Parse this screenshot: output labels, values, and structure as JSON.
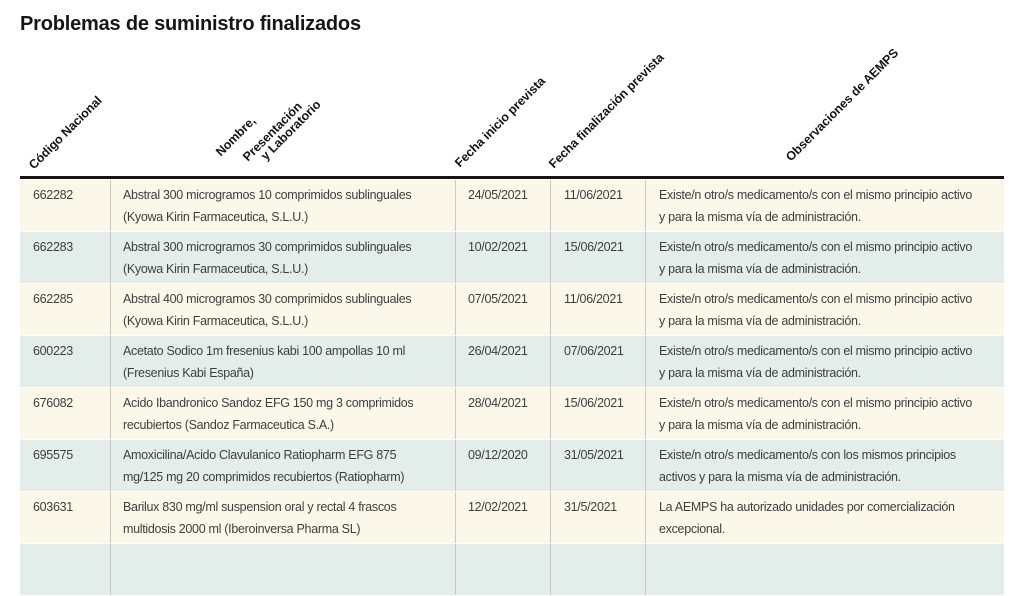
{
  "page": {
    "title": "Problemas de suministro finalizados"
  },
  "colors": {
    "row_odd": "#fbf8e9",
    "row_even": "#e3ede9",
    "divider": "#c8c8c8",
    "border_dark": "#141414"
  },
  "table": {
    "columns": [
      {
        "label": "Código Nacional"
      },
      {
        "label_lines": [
          "Nombre,",
          "Presentación",
          "y Laboratorio"
        ]
      },
      {
        "label": "Fecha inicio prevista"
      },
      {
        "label": "Fecha finalización prevista"
      },
      {
        "label": "Observaciones de AEMPS"
      }
    ],
    "rows": [
      {
        "codigo": "662282",
        "nombre": "Abstral 300 microgramos 10 comprimidos sublinguales\n(Kyowa Kirin Farmaceutica, S.L.U.)",
        "inicio": "24/05/2021",
        "fin": "11/06/2021",
        "observaciones": "Existe/n otro/s medicamento/s con el mismo principio activo\ny para la misma vía de administración."
      },
      {
        "codigo": "662283",
        "nombre": "Abstral 300 microgramos 30 comprimidos sublinguales\n(Kyowa Kirin Farmaceutica, S.L.U.)",
        "inicio": "10/02/2021",
        "fin": "15/06/2021",
        "observaciones": "Existe/n otro/s medicamento/s con el mismo principio activo\ny para la misma vía de administración."
      },
      {
        "codigo": "662285",
        "nombre": "Abstral 400 microgramos 30 comprimidos sublinguales\n(Kyowa Kirin Farmaceutica, S.L.U.)",
        "inicio": "07/05/2021",
        "fin": "11/06/2021",
        "observaciones": "Existe/n otro/s medicamento/s con el mismo principio activo\ny para la misma vía de administración."
      },
      {
        "codigo": "600223",
        "nombre": "Acetato Sodico 1m fresenius kabi 100 ampollas 10 ml\n(Fresenius Kabi España)",
        "inicio": "26/04/2021",
        "fin": "07/06/2021",
        "observaciones": "Existe/n otro/s medicamento/s con el mismo principio activo\ny para la misma vía de administración."
      },
      {
        "codigo": "676082",
        "nombre": "Acido Ibandronico Sandoz EFG 150 mg 3 comprimidos\nrecubiertos (Sandoz Farmaceutica S.A.)",
        "inicio": "28/04/2021",
        "fin": "15/06/2021",
        "observaciones": "Existe/n otro/s medicamento/s con el mismo principio activo\ny para la misma vía de administración."
      },
      {
        "codigo": "695575",
        "nombre": "Amoxicilina/Acido Clavulanico Ratiopharm EFG 875\nmg/125 mg 20 comprimidos recubiertos (Ratiopharm)",
        "inicio": "09/12/2020",
        "fin": "31/05/2021",
        "observaciones": "Existe/n otro/s medicamento/s con los mismos principios\nactivos y para la misma vía de administración."
      },
      {
        "codigo": "603631",
        "nombre": "Barilux 830 mg/ml suspension oral y rectal 4 frascos\nmultidosis 2000 ml (Iberoinversa Pharma SL)",
        "inicio": "12/02/2021",
        "fin": "31/5/2021",
        "observaciones": "La AEMPS ha autorizado unidades por comercialización\nexcepcional."
      }
    ]
  }
}
